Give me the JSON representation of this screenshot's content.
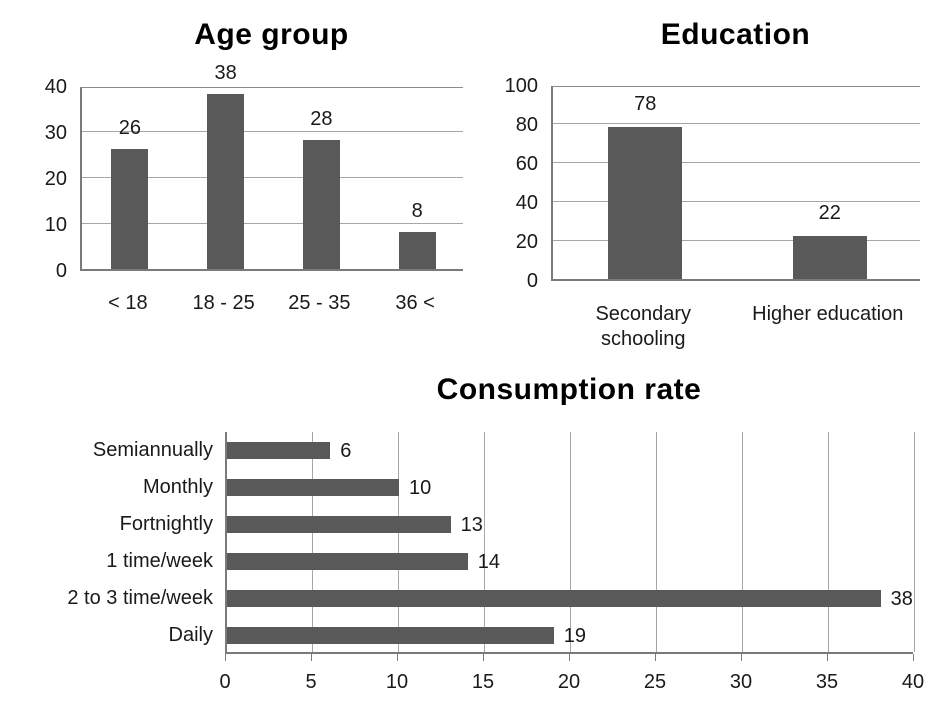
{
  "colors": {
    "background": "#ffffff",
    "bar": "#595959",
    "axis_line": "#7a7a7a",
    "plot_top_border": "#8c8c8c",
    "gridline": "#a6a6a6",
    "label_text": "#1a1a1a",
    "title_text": "#000000"
  },
  "chart_data": [
    {
      "id": "age-group",
      "type": "bar",
      "title": "Age group",
      "categories": [
        "< 18",
        "18 - 25",
        "25 - 35",
        "36 <"
      ],
      "values": [
        26,
        38,
        28,
        8
      ],
      "ylim": [
        0,
        40
      ],
      "yticks": [
        0,
        10,
        20,
        30,
        40
      ],
      "grid": true,
      "legend": false,
      "data_labels": [
        26,
        38,
        28,
        8
      ]
    },
    {
      "id": "education",
      "type": "bar",
      "title": "Education",
      "categories": [
        "Secondary schooling",
        "Higher education"
      ],
      "values": [
        78,
        22
      ],
      "ylim": [
        0,
        100
      ],
      "yticks": [
        0,
        20,
        40,
        60,
        80,
        100
      ],
      "grid": true,
      "legend": false,
      "data_labels": [
        78,
        22
      ]
    },
    {
      "id": "consumption-rate",
      "type": "bar-horizontal",
      "title": "Consumption rate",
      "categories": [
        "Semiannually",
        "Monthly",
        "Fortnightly",
        "1 time/week",
        "2 to 3 time/week",
        "Daily"
      ],
      "values": [
        6,
        10,
        13,
        14,
        38,
        19
      ],
      "xlim": [
        0,
        40
      ],
      "xticks": [
        0,
        5,
        10,
        15,
        20,
        25,
        30,
        35,
        40
      ],
      "grid": true,
      "legend": false,
      "data_labels": [
        6,
        10,
        13,
        14,
        38,
        19
      ]
    }
  ]
}
